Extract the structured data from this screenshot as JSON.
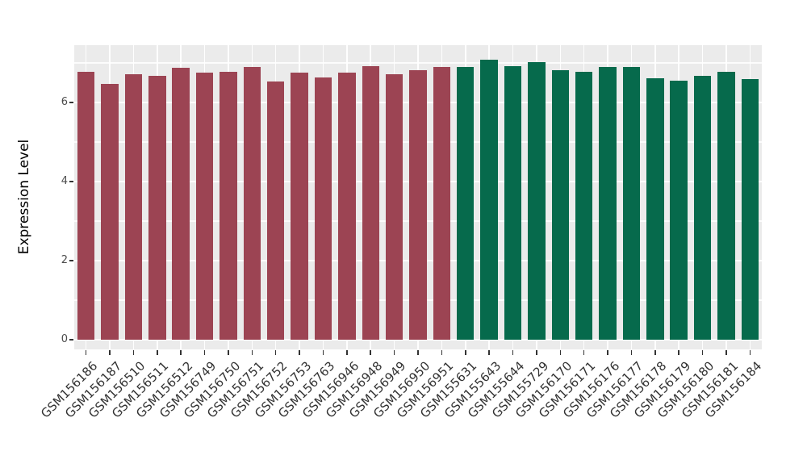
{
  "figure": {
    "background": "#FFFFFF"
  },
  "chart_data": {
    "type": "bar",
    "title": "",
    "xlabel": "",
    "ylabel": "Expression Level",
    "ylim": [
      0,
      7.45
    ],
    "yticks": [
      0,
      2,
      4,
      6
    ],
    "yticks_minor": [
      1,
      3,
      5,
      7
    ],
    "grid": true,
    "legend": false,
    "panel_background": "#EBEBEB",
    "grid_color": "#FFFFFF",
    "tick_mark_color": "#333333",
    "axis_text_color": "#4D4D4D",
    "categories": [
      "GSM156186",
      "GSM156187",
      "GSM156510",
      "GSM156511",
      "GSM156512",
      "GSM156749",
      "GSM156750",
      "GSM156751",
      "GSM156752",
      "GSM156753",
      "GSM156763",
      "GSM156946",
      "GSM156948",
      "GSM156949",
      "GSM156950",
      "GSM156951",
      "GSM155631",
      "GSM155643",
      "GSM155644",
      "GSM155729",
      "GSM156170",
      "GSM156171",
      "GSM156176",
      "GSM156177",
      "GSM156178",
      "GSM156179",
      "GSM156180",
      "GSM156181",
      "GSM156184"
    ],
    "values": [
      6.77,
      6.46,
      6.71,
      6.68,
      6.87,
      6.76,
      6.77,
      6.9,
      6.54,
      6.76,
      6.64,
      6.75,
      6.91,
      6.71,
      6.81,
      6.89,
      6.9,
      7.08,
      6.91,
      7.02,
      6.81,
      6.78,
      6.9,
      6.9,
      6.61,
      6.55,
      6.68,
      6.77,
      6.6
    ],
    "groups": [
      {
        "name": "group-1",
        "color": "#9C4453",
        "start": 0,
        "count": 16
      },
      {
        "name": "group-2",
        "color": "#066A4C",
        "start": 16,
        "count": 13
      }
    ]
  }
}
